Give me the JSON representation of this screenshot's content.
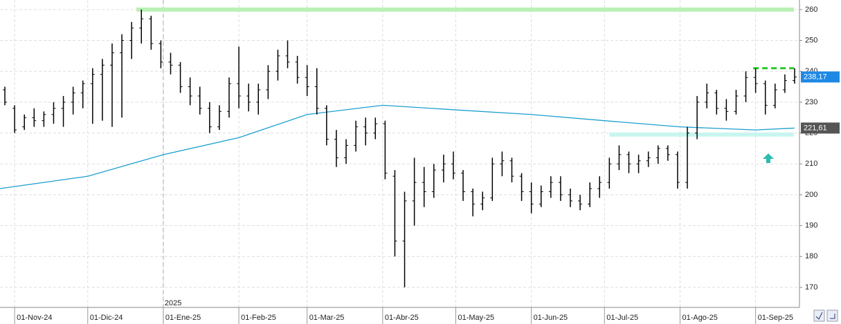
{
  "chart_data": {
    "type": "ohlc",
    "x": [
      "2024-10-28",
      "2024-11-01",
      "2024-11-05",
      "2024-11-09",
      "2024-11-13",
      "2024-11-17",
      "2024-11-21",
      "2024-11-25",
      "2024-11-29",
      "2024-12-03",
      "2024-12-07",
      "2024-12-11",
      "2024-12-15",
      "2024-12-19",
      "2024-12-23",
      "2024-12-27",
      "2024-12-31",
      "2025-01-04",
      "2025-01-08",
      "2025-01-12",
      "2025-01-16",
      "2025-01-20",
      "2025-01-24",
      "2025-01-28",
      "2025-02-01",
      "2025-02-05",
      "2025-02-09",
      "2025-02-13",
      "2025-02-17",
      "2025-02-21",
      "2025-02-25",
      "2025-03-01",
      "2025-03-05",
      "2025-03-09",
      "2025-03-13",
      "2025-03-17",
      "2025-03-21",
      "2025-03-25",
      "2025-03-29",
      "2025-04-02",
      "2025-04-06",
      "2025-04-10",
      "2025-04-14",
      "2025-04-18",
      "2025-04-22",
      "2025-04-26",
      "2025-04-30",
      "2025-05-04",
      "2025-05-08",
      "2025-05-12",
      "2025-05-16",
      "2025-05-20",
      "2025-05-24",
      "2025-05-28",
      "2025-06-01",
      "2025-06-05",
      "2025-06-09",
      "2025-06-13",
      "2025-06-17",
      "2025-06-21",
      "2025-06-25",
      "2025-06-29",
      "2025-07-03",
      "2025-07-07",
      "2025-07-11",
      "2025-07-15",
      "2025-07-19",
      "2025-07-23",
      "2025-07-27",
      "2025-07-31",
      "2025-08-04",
      "2025-08-08",
      "2025-08-12",
      "2025-08-16",
      "2025-08-20",
      "2025-08-24",
      "2025-08-28",
      "2025-09-01",
      "2025-09-05",
      "2025-09-09",
      "2025-09-13",
      "2025-09-17"
    ],
    "open": [
      234,
      228,
      222,
      225,
      224,
      226,
      228,
      230,
      233,
      236,
      239,
      242,
      246,
      250,
      254,
      257,
      249,
      243,
      242,
      235,
      232,
      228,
      222,
      227,
      236,
      232,
      230,
      234,
      240,
      245,
      243,
      238,
      235,
      228,
      218,
      212,
      216,
      222,
      220,
      223,
      206,
      185,
      198,
      204,
      201,
      208,
      210,
      207,
      201,
      197,
      199,
      210,
      211,
      206,
      201,
      197,
      201,
      204,
      200,
      198,
      197,
      202,
      204,
      210,
      213,
      210,
      211,
      212,
      215,
      213,
      204,
      220,
      230,
      233,
      228,
      227,
      232,
      238,
      236,
      229,
      234,
      237
    ],
    "high": [
      235,
      229,
      226,
      228,
      227,
      230,
      232,
      235,
      237,
      241,
      244,
      249,
      252,
      256,
      260,
      258,
      250,
      246,
      243,
      238,
      235,
      230,
      229,
      238,
      248,
      236,
      236,
      242,
      247,
      250,
      245,
      242,
      241,
      229,
      221,
      218,
      224,
      225,
      225,
      224,
      208,
      201,
      212,
      209,
      210,
      213,
      214,
      208,
      202,
      201,
      212,
      214,
      212,
      207,
      204,
      203,
      206,
      206,
      202,
      200,
      204,
      206,
      212,
      216,
      214,
      213,
      214,
      216,
      216,
      214,
      222,
      232,
      236,
      234,
      231,
      234,
      240,
      241,
      237,
      236,
      239,
      241
    ],
    "low": [
      229,
      220,
      221,
      222,
      222,
      223,
      222,
      226,
      228,
      223,
      224,
      222,
      225,
      244,
      249,
      247,
      241,
      239,
      233,
      229,
      226,
      220,
      221,
      225,
      228,
      227,
      226,
      231,
      237,
      241,
      236,
      232,
      226,
      216,
      209,
      210,
      214,
      216,
      218,
      205,
      180,
      170,
      190,
      196,
      199,
      204,
      205,
      198,
      193,
      195,
      198,
      206,
      204,
      198,
      194,
      196,
      199,
      198,
      196,
      195,
      196,
      199,
      202,
      208,
      207,
      207,
      209,
      210,
      211,
      202,
      202,
      218,
      228,
      226,
      224,
      226,
      230,
      233,
      226,
      228,
      233,
      236
    ],
    "close": [
      230,
      221,
      225,
      224,
      226,
      228,
      230,
      233,
      236,
      239,
      242,
      246,
      250,
      254,
      257,
      249,
      243,
      242,
      235,
      232,
      228,
      222,
      227,
      236,
      232,
      230,
      234,
      240,
      245,
      243,
      238,
      235,
      228,
      218,
      212,
      216,
      222,
      220,
      223,
      207,
      185,
      198,
      204,
      201,
      208,
      210,
      207,
      201,
      197,
      199,
      210,
      211,
      206,
      201,
      197,
      201,
      204,
      200,
      198,
      197,
      202,
      204,
      210,
      213,
      210,
      211,
      212,
      215,
      213,
      204,
      220,
      230,
      233,
      228,
      227,
      232,
      238,
      236,
      229,
      234,
      237,
      238.17
    ],
    "last_label": {
      "value": 238.17,
      "label": "238,17"
    },
    "moving_average": {
      "color": "#1a9fd0",
      "x": [
        "2024-10-26",
        "2024-12-01",
        "2025-01-01",
        "2025-02-01",
        "2025-03-01",
        "2025-04-01",
        "2025-05-01",
        "2025-06-01",
        "2025-07-01",
        "2025-08-01",
        "2025-09-01",
        "2025-09-17"
      ],
      "values": [
        202,
        206,
        213,
        218.5,
        226,
        229,
        227.5,
        226,
        224,
        222,
        221,
        221.61
      ],
      "last_label": {
        "value": 221.61,
        "label": "221,61"
      }
    },
    "levels": [
      {
        "value": 260,
        "start": "2024-12-21",
        "color": "#b9f0b4"
      },
      {
        "value": 219.5,
        "start": "2025-07-03",
        "color": "#c8f5f0"
      },
      {
        "value": 241,
        "start": "2025-08-31",
        "color": "#22cc22"
      }
    ],
    "year_label": "2025",
    "year_start": "2025-01-01",
    "xlim": [
      "2024-10-26",
      "2025-09-19"
    ],
    "xticks": [
      {
        "value": "2024-11-01",
        "label": "01-Nov-24"
      },
      {
        "value": "2024-12-01",
        "label": "01-Dic-24"
      },
      {
        "value": "2025-01-01",
        "label": "01-Ene-25"
      },
      {
        "value": "2025-02-01",
        "label": "01-Feb-25"
      },
      {
        "value": "2025-03-01",
        "label": "01-Mar-25"
      },
      {
        "value": "2025-04-01",
        "label": "01-Abr-25"
      },
      {
        "value": "2025-05-01",
        "label": "01-May-25"
      },
      {
        "value": "2025-06-01",
        "label": "01-Jun-25"
      },
      {
        "value": "2025-07-01",
        "label": "01-Jul-25"
      },
      {
        "value": "2025-08-01",
        "label": "01-Ago-25"
      },
      {
        "value": "2025-09-01",
        "label": "01-Sep-25"
      }
    ],
    "ylim": [
      163.5,
      263.1
    ],
    "yticks": [
      170,
      180,
      190,
      200,
      210,
      220,
      230,
      240,
      250,
      260
    ],
    "grid": true
  }
}
